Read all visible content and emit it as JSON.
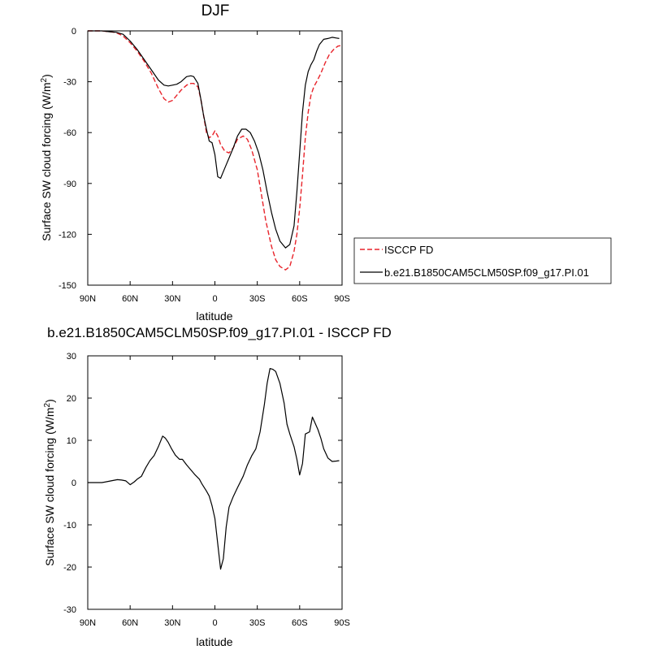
{
  "chart_data": [
    {
      "type": "line",
      "title": "DJF",
      "xlabel": "latitude",
      "ylabel": "Surface SW cloud forcing (W/m",
      "ylabel_sup": "2",
      "ylabel_close": ")",
      "xlim": [
        90,
        -90
      ],
      "ylim": [
        -150,
        0
      ],
      "x_ticks": [
        90,
        60,
        30,
        0,
        -30,
        -60,
        -90
      ],
      "x_tick_labels": [
        "90N",
        "60N",
        "30N",
        "0",
        "30S",
        "60S",
        "90S"
      ],
      "y_ticks": [
        0,
        -30,
        -60,
        -90,
        -120,
        -150
      ],
      "y_tick_labels": [
        "0",
        "-30",
        "-60",
        "-90",
        "-120",
        "-150"
      ],
      "grid": false,
      "legend_position": "right",
      "series": [
        {
          "name": "ISCCP FD",
          "color": "#e8242b",
          "dash": true,
          "x": [
            90,
            85,
            80,
            75,
            70,
            65,
            60,
            55,
            50,
            45,
            40,
            36,
            33,
            30,
            27,
            24,
            20,
            17,
            15,
            12,
            10,
            8,
            6,
            4,
            2,
            0,
            -2,
            -4,
            -7,
            -10,
            -13,
            -16,
            -20,
            -23,
            -26,
            -30,
            -33,
            -36,
            -40,
            -43,
            -46,
            -50,
            -53,
            -56,
            -58,
            -60,
            -62,
            -64,
            -66,
            -68,
            -70,
            -72,
            -75,
            -78,
            -81,
            -84,
            -87,
            -90
          ],
          "values": [
            0,
            0,
            0,
            -0.5,
            -1,
            -3,
            -7,
            -12,
            -18,
            -25,
            -34,
            -40,
            -42,
            -41,
            -38,
            -35,
            -32,
            -31,
            -31,
            -33,
            -40,
            -50,
            -60,
            -63,
            -62,
            -59,
            -62,
            -67,
            -71,
            -72,
            -69,
            -64,
            -62,
            -64,
            -70,
            -82,
            -97,
            -112,
            -127,
            -135,
            -139,
            -141,
            -139,
            -130,
            -120,
            -105,
            -85,
            -63,
            -48,
            -38,
            -33,
            -30,
            -25,
            -19,
            -14,
            -11,
            -9,
            -8.5
          ]
        },
        {
          "name": "b.e21.B1850CAM5CLM50SP.f09_g17.PI.01",
          "color": "#000000",
          "dash": false,
          "x": [
            90,
            85,
            80,
            75,
            70,
            65,
            60,
            55,
            50,
            45,
            40,
            36,
            33,
            30,
            27,
            24,
            20,
            17,
            15,
            12,
            10,
            8,
            6,
            4,
            2,
            0,
            -2,
            -4,
            -6,
            -8,
            -10,
            -13,
            -16,
            -19,
            -22,
            -25,
            -28,
            -31,
            -34,
            -37,
            -40,
            -43,
            -46,
            -50,
            -53,
            -56,
            -58,
            -60,
            -62,
            -64,
            -66,
            -68,
            -70,
            -72,
            -74,
            -77,
            -80,
            -83,
            -86,
            -88
          ],
          "values": [
            0,
            0,
            0,
            -0.5,
            -0.8,
            -2,
            -6,
            -11,
            -17,
            -23,
            -29,
            -32,
            -32.5,
            -32,
            -31.5,
            -30,
            -27,
            -26.5,
            -27,
            -31,
            -40,
            -50,
            -58,
            -65,
            -66,
            -73,
            -86,
            -87,
            -83,
            -79,
            -75,
            -69,
            -62,
            -58,
            -58,
            -60,
            -65,
            -72,
            -82,
            -95,
            -107,
            -117,
            -124,
            -128,
            -126,
            -115,
            -95,
            -72,
            -48,
            -32,
            -24,
            -20,
            -17,
            -12,
            -8,
            -5,
            -4.5,
            -3.8,
            -4.2,
            -4.5
          ]
        }
      ]
    },
    {
      "type": "line",
      "title": "b.e21.B1850CAM5CLM50SP.f09_g17.PI.01 - ISCCP FD",
      "xlabel": "latitude",
      "ylabel": "Surface SW cloud forcing (W/m",
      "ylabel_sup": "2",
      "ylabel_close": ")",
      "xlim": [
        90,
        -90
      ],
      "ylim": [
        -30,
        30
      ],
      "x_ticks": [
        90,
        60,
        30,
        0,
        -30,
        -60,
        -90
      ],
      "x_tick_labels": [
        "90N",
        "60N",
        "30N",
        "0",
        "30S",
        "60S",
        "90S"
      ],
      "y_ticks": [
        30,
        20,
        10,
        0,
        -10,
        -20,
        -30
      ],
      "y_tick_labels": [
        "30",
        "20",
        "10",
        "0",
        "-10",
        "-20",
        "-30"
      ],
      "grid": false,
      "series": [
        {
          "color": "#000000",
          "dash": false,
          "x": [
            90,
            85,
            80,
            75,
            72,
            69,
            66,
            63,
            60,
            57,
            55,
            52,
            49,
            46,
            43,
            40,
            37,
            35,
            33,
            31,
            28,
            25,
            23,
            20,
            17,
            14,
            11,
            9,
            6,
            4,
            2,
            0,
            -2,
            -4,
            -6,
            -8,
            -10,
            -13,
            -16,
            -20,
            -23,
            -26,
            -29,
            -32,
            -35,
            -37,
            -39,
            -41,
            -43,
            -46,
            -49,
            -51,
            -53,
            -56,
            -58,
            -60,
            -62,
            -64,
            -67,
            -69,
            -71,
            -73,
            -75,
            -77,
            -80,
            -83,
            -86,
            -88
          ],
          "values": [
            0,
            0,
            0,
            0.3,
            0.5,
            0.7,
            0.6,
            0.4,
            -0.5,
            0.2,
            0.8,
            1.5,
            3.5,
            5.2,
            6.4,
            8.5,
            11,
            10.5,
            9.5,
            8.2,
            6.5,
            5.5,
            5.5,
            4.2,
            3,
            1.8,
            0.8,
            -0.4,
            -2,
            -3.2,
            -5.5,
            -8.5,
            -14.5,
            -20.5,
            -18,
            -10.5,
            -5.8,
            -3.3,
            -1.2,
            1.5,
            4.2,
            6.3,
            8,
            12,
            18.5,
            23.5,
            27,
            26.8,
            26.3,
            23.5,
            18.8,
            13.8,
            11.5,
            8.5,
            5.5,
            1.8,
            4.5,
            11.5,
            12,
            15.5,
            14,
            12.5,
            10.5,
            8,
            5.8,
            5,
            5.1,
            5.2
          ]
        }
      ]
    }
  ]
}
